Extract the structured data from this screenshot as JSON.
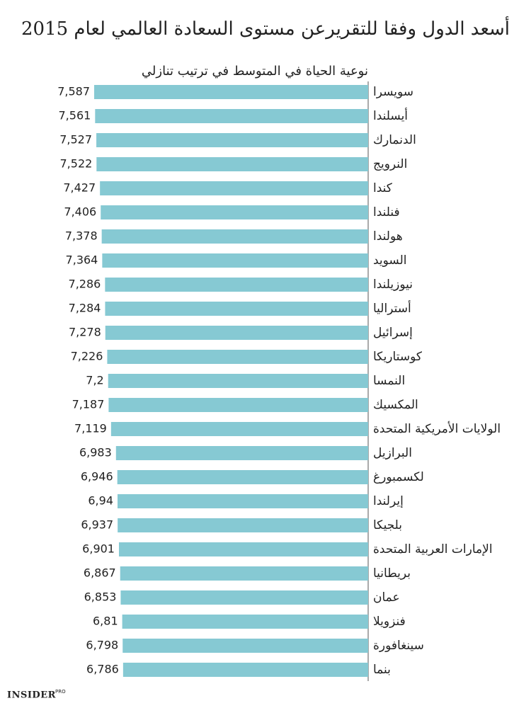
{
  "chart_data": {
    "type": "bar",
    "orientation": "horizontal",
    "title": "أسعد الدول وفقا للتقريرعن مستوى السعادة العالمي  لعام 2015",
    "subtitle": "نوعية الحياة في المتوسط في ترتيب تنازلي",
    "categories": [
      "سويسرا",
      "أيسلندا",
      "الدنمارك",
      "النرويج",
      "كندا",
      "فنلندا",
      "هولندا",
      "السويد",
      "نيوزيلندا",
      "أستراليا",
      "إسرائيل",
      "كوستاريكا",
      "النمسا",
      "المكسيك",
      "الولايات الأمريكية المتحدة",
      "البرازيل",
      "لكسمبورغ",
      "إيرلندا",
      "بلجيكا",
      "الإمارات العربية المتحدة",
      "بريطانيا",
      "عمان",
      "فنزويلا",
      "سينغافورة",
      "بنما"
    ],
    "values": [
      7.587,
      7.561,
      7.527,
      7.522,
      7.427,
      7.406,
      7.378,
      7.364,
      7.286,
      7.284,
      7.278,
      7.226,
      7.2,
      7.187,
      7.119,
      6.983,
      6.946,
      6.94,
      6.937,
      6.901,
      6.867,
      6.853,
      6.81,
      6.798,
      6.786
    ],
    "value_labels": [
      "7,587",
      "7,561",
      "7,527",
      "7,522",
      "7,427",
      "7,406",
      "7,378",
      "7,364",
      "7,286",
      "7,284",
      "7,278",
      "7,226",
      "7,2",
      "7,187",
      "7,119",
      "6,983",
      "6,946",
      "6,94",
      "6,937",
      "6,901",
      "6,867",
      "6,853",
      "6,81",
      "6,798",
      "6,786"
    ],
    "color": "#86c9d3",
    "subtitle_color": "#5fbccb",
    "footer_brand": "INSIDER",
    "footer_tag": "PRO"
  }
}
